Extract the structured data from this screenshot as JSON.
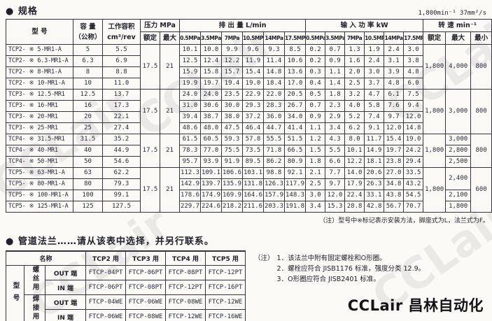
{
  "watermark_text": "CCLair",
  "spec": {
    "heading": "● 规格",
    "conditions": "1,800min⁻¹ 37mm²/s",
    "note": "（注）型号中※标记表示安装方法，脚座式为L，法兰式为F。"
  },
  "spec_table": {
    "headers": {
      "model": "型  号",
      "capacity_1": "容 量",
      "capacity_2": "（公称）",
      "volume_1": "工作容积",
      "volume_2": "cm³/rev",
      "pressure": "压力  MPa",
      "discharge": "排  出  量  L/min",
      "power": "输  入  功  率  kW",
      "speed": "转  速  min⁻¹"
    },
    "sub_headers": [
      "额定",
      "最大",
      "0.5MPa",
      "3.5MPa",
      "7MPa",
      "10.5MPa",
      "14MPa",
      "17.5MPa",
      "0.5MPa",
      "3.5MPa",
      "7MPa",
      "10.5MPa",
      "14MPa",
      "17.5MPa",
      "额定",
      "最大",
      "最小"
    ],
    "rows": [
      {
        "model": "TCP2- ※ 5-MR1-A",
        "capacity": "5",
        "volume": "5.5",
        "discharge": [
          "10.1",
          "10.0",
          "9.9",
          "9.6",
          "9.3",
          "8.5"
        ],
        "power": [
          "0.2",
          "0.7",
          "1.3",
          "1.9",
          "2.4",
          "3.0"
        ]
      },
      {
        "model": "TCP2- ※ 6.3-MR1-A",
        "capacity": "6.3",
        "volume": "6.9",
        "discharge": [
          "12.5",
          "12.4",
          "12.2",
          "11.9",
          "11.4",
          "10.6"
        ],
        "power": [
          "0.2",
          "0.9",
          "1.6",
          "2.4",
          "3.1",
          "3.8"
        ]
      },
      {
        "model": "TCP2- ※ 8-MR1-A",
        "capacity": "8",
        "volume": "8.8",
        "discharge": [
          "15.9",
          "15.8",
          "15.7",
          "15.4",
          "14.8",
          "13.6"
        ],
        "power": [
          "0.3",
          "1.1",
          "2.0",
          "3.0",
          "3.9",
          "4.8"
        ]
      },
      {
        "model": "TCP2- ※ 10-MR1-A",
        "capacity": "10",
        "volume": "11.0",
        "discharge": [
          "19.9",
          "19.7",
          "19.4",
          "19.0",
          "18.4",
          "17.0"
        ],
        "power": [
          "0.4",
          "1.4",
          "2.5",
          "3.7",
          "4.8",
          "6.0"
        ]
      },
      {
        "model": "TCP3- ※ 12.5-MR1",
        "capacity": "12.5",
        "volume": "13.7",
        "discharge": [
          "24.0",
          "24.0",
          "23.5",
          "22.9",
          "22.0",
          "20.5"
        ],
        "power": [
          "0.5",
          "1.8",
          "3.2",
          "4.7",
          "6.1",
          "7.5"
        ]
      },
      {
        "model": "TCP3- ※ 16-MR1",
        "capacity": "16",
        "volume": "17.3",
        "discharge": [
          "31.0",
          "30.6",
          "30.0",
          "29.3",
          "28.3",
          "26.7"
        ],
        "power": [
          "0.7",
          "2.3",
          "4.0",
          "5.8",
          "7.6",
          "9.4"
        ]
      },
      {
        "model": "TCP3- ※ 20-MR1",
        "capacity": "20",
        "volume": "22.1",
        "discharge": [
          "39.4",
          "38.7",
          "38.0",
          "37.2",
          "36.0",
          "34.0"
        ],
        "power": [
          "0.9",
          "2.9",
          "5.2",
          "7.4",
          "9.7",
          "12.0"
        ]
      },
      {
        "model": "TCP3- ※ 25-MR1",
        "capacity": "25",
        "volume": "27.4",
        "discharge": [
          "48.6",
          "48.0",
          "47.5",
          "46.4",
          "44.7",
          "41.4"
        ],
        "power": [
          "1.1",
          "3.4",
          "6.2",
          "9.1",
          "12.0",
          "14.8"
        ]
      },
      {
        "model": "TCP4- ※ 31.5-MR1",
        "capacity": "31.5",
        "volume": "35.2",
        "discharge": [
          "61.5",
          "60.5",
          "59.3",
          "57.8",
          "55.5",
          "51.5"
        ],
        "power": [
          "1.2",
          "4.3",
          "8.0",
          "11.7",
          "15.4",
          "19.0"
        ]
      },
      {
        "model": "TCP4- ※ 40-MR1",
        "capacity": "40",
        "volume": "44.9",
        "discharge": [
          "78.3",
          "77.0",
          "75.5",
          "73.5",
          "71.8",
          "66.5"
        ],
        "power": [
          "1.5",
          "5.5",
          "10.1",
          "14.9",
          "19.7",
          "24.2"
        ]
      },
      {
        "model": "TCP4- ※ 50-MR1",
        "capacity": "50",
        "volume": "54.6",
        "discharge": [
          "95.7",
          "93.9",
          "91.9",
          "89.5",
          "86.2",
          "80.9"
        ],
        "power": [
          "1.8",
          "6.6",
          "12.2",
          "18.1",
          "23.8",
          "29.4"
        ]
      },
      {
        "model": "TCP5- ※ 63-MR1-A",
        "capacity": "63",
        "volume": "62.2",
        "discharge": [
          "112.3",
          "109.1",
          "106.6",
          "103.1",
          "98.8",
          "92.1"
        ],
        "power": [
          "2.1",
          "7.7",
          "14.0",
          "20.6",
          "27.0",
          "33.5"
        ]
      },
      {
        "model": "TCP5- ※ 80-MR1-A",
        "capacity": "80",
        "volume": "79.3",
        "discharge": [
          "142.9",
          "139.7",
          "135.9",
          "131.8",
          "126.3",
          "117.9"
        ],
        "power": [
          "2.5",
          "9.7",
          "17.9",
          "26.3",
          "34.8",
          "43.2"
        ]
      },
      {
        "model": "TCP5- ※ 100-MR1-A",
        "capacity": "100",
        "volume": "99.1",
        "discharge": [
          "178.6",
          "174.9",
          "169.9",
          "164.6",
          "157.9",
          "148.3"
        ],
        "power": [
          "3.0",
          "12.0",
          "22.4",
          "33.1",
          "43.8",
          "54.5"
        ]
      },
      {
        "model": "TCP5- ※ 125-MR1-A",
        "capacity": "125",
        "volume": "127.5",
        "discharge": [
          "229.7",
          "224.6",
          "218.2",
          "211.6",
          "203.3",
          "191.8"
        ],
        "power": [
          "3.4",
          "15.3",
          "28.8",
          "42.8",
          "56.7",
          "70.7"
        ]
      }
    ],
    "groups": [
      {
        "start": 0,
        "len": 4,
        "pressure_rated": "17.5",
        "pressure_max": "21",
        "speed_rated": "1,800",
        "speed_max": [
          {
            "value": "4,000",
            "span": 4
          }
        ],
        "speed_min": "800"
      },
      {
        "start": 4,
        "len": 4,
        "pressure_rated": "17.5",
        "pressure_max": "21",
        "speed_rated": "1,800",
        "speed_max": [
          {
            "value": "3,000",
            "span": 4
          }
        ],
        "speed_min": "800"
      },
      {
        "start": 8,
        "len": 3,
        "pressure_rated": "17.5",
        "pressure_max": "21",
        "speed_rated": "1,800",
        "speed_max": [
          {
            "value": "3,000",
            "span": 1
          },
          {
            "value": "2,800",
            "span": 1
          },
          {
            "value": "2,500",
            "span": 1
          }
        ],
        "speed_min": "800"
      },
      {
        "start": 11,
        "len": 4,
        "pressure_rated": "17.5",
        "pressure_max": "21",
        "speed_rated": "1,800",
        "speed_max": [
          {
            "value": "2,400",
            "span": 2
          },
          {
            "value": "2,100",
            "span": 1
          },
          {
            "value": "1,800",
            "span": 1
          }
        ],
        "speed_min": "600"
      }
    ]
  },
  "flange": {
    "heading": "● 管道法兰……请从该表中选择，并另行联系。",
    "name_header": "名称",
    "columns": [
      "TCP2 用",
      "TCP3 用",
      "TCP4 用",
      "TCP5 用"
    ],
    "row_header": "型号",
    "rows": [
      {
        "type": "螺丝用",
        "port": "OUT 端",
        "values": [
          "FTCP-04PT",
          "FTCP-06PT",
          "FTCP-08PT",
          "FTCP-12PT"
        ]
      },
      {
        "port": "IN 端",
        "values": [
          "FTCP-06PT",
          "FTCP-08PT",
          "FTCP-12PT",
          "FTCP-16PT"
        ]
      },
      {
        "type": "焊接用",
        "port": "OUT 端",
        "values": [
          "FTCP-04WE",
          "FTCP-06WE",
          "FTCP-08WE",
          "FTCP-12WE"
        ]
      },
      {
        "port": "IN 端",
        "values": [
          "FTCP-06WE",
          "FTCP-08WE",
          "FTCP-12WE",
          "FTCP-16WE"
        ]
      }
    ],
    "notes": {
      "label": "（注）",
      "items": [
        "1．该法兰中附有固定螺栓和O形圈。",
        "2．螺栓应符合 JISB1176 标准，强度分类 12.9。",
        "3．O形圈应符合 JISB2401 标准。"
      ]
    }
  },
  "logo": "CCLair 昌林自动化"
}
